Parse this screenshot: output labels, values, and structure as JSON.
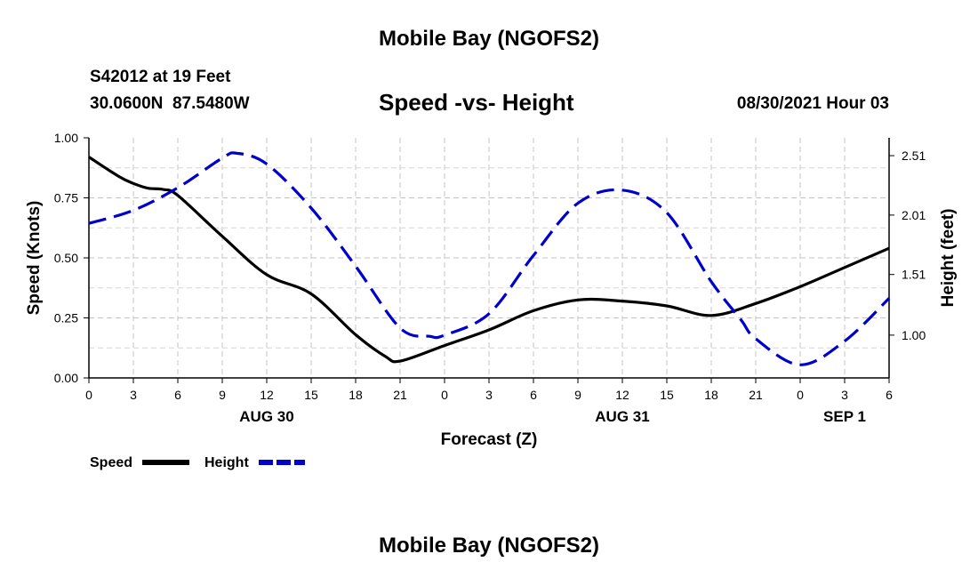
{
  "header": {
    "title": "Mobile Bay (NGOFS2)",
    "station": "S42012 at 19 Feet",
    "coords": "30.0600N  87.5480W",
    "subtitle": "Speed -vs- Height",
    "datetime": "08/30/2021 Hour 03"
  },
  "footer": {
    "title": "Mobile Bay (NGOFS2)"
  },
  "chart_data": {
    "type": "line",
    "title": "Speed -vs- Height",
    "xlabel": "Forecast (Z)",
    "ylabel": "Speed (Knots)",
    "y2label": "Height (feet)",
    "x_range_hours": [
      0,
      54
    ],
    "x_ticks": [
      {
        "hour": 0,
        "label": "0"
      },
      {
        "hour": 3,
        "label": "3"
      },
      {
        "hour": 6,
        "label": "6"
      },
      {
        "hour": 9,
        "label": "9"
      },
      {
        "hour": 12,
        "label": "12"
      },
      {
        "hour": 15,
        "label": "15"
      },
      {
        "hour": 18,
        "label": "18"
      },
      {
        "hour": 21,
        "label": "21"
      },
      {
        "hour": 24,
        "label": "0"
      },
      {
        "hour": 27,
        "label": "3"
      },
      {
        "hour": 30,
        "label": "6"
      },
      {
        "hour": 33,
        "label": "9"
      },
      {
        "hour": 36,
        "label": "12"
      },
      {
        "hour": 39,
        "label": "15"
      },
      {
        "hour": 42,
        "label": "18"
      },
      {
        "hour": 45,
        "label": "21"
      },
      {
        "hour": 48,
        "label": "0"
      },
      {
        "hour": 51,
        "label": "3"
      },
      {
        "hour": 54,
        "label": "6"
      }
    ],
    "day_labels": [
      {
        "hour": 12,
        "label": "AUG 30"
      },
      {
        "hour": 36,
        "label": "AUG 31"
      },
      {
        "hour": 51,
        "label": "SEP 1"
      }
    ],
    "ylim": [
      0,
      1.0
    ],
    "y_ticks": [
      "0.00",
      "0.25",
      "0.50",
      "0.75",
      "1.00"
    ],
    "y2lim": [
      0.64,
      2.66
    ],
    "y2_ticks": [
      {
        "value": 1.0,
        "label": "1.00"
      },
      {
        "value": 1.51,
        "label": "1.51"
      },
      {
        "value": 2.01,
        "label": "2.01"
      },
      {
        "value": 2.51,
        "label": "2.51"
      }
    ],
    "grid": true,
    "series": [
      {
        "name": "Speed",
        "axis": "left",
        "color": "#000000",
        "dash": "solid",
        "x": [
          0,
          2,
          3,
          4,
          5,
          6,
          9,
          12,
          15,
          18,
          20,
          21,
          24,
          27,
          30,
          33,
          36,
          39,
          42,
          45,
          48,
          51,
          54
        ],
        "values": [
          0.92,
          0.84,
          0.81,
          0.79,
          0.785,
          0.76,
          0.59,
          0.43,
          0.35,
          0.18,
          0.09,
          0.07,
          0.135,
          0.2,
          0.28,
          0.325,
          0.32,
          0.3,
          0.26,
          0.31,
          0.38,
          0.46,
          0.54
        ]
      },
      {
        "name": "Height",
        "axis": "right",
        "color": "#0000cc",
        "dash": "dashed",
        "x": [
          0,
          3,
          6,
          9,
          10,
          12,
          15,
          18,
          21,
          23,
          24,
          27,
          30,
          33,
          36,
          39,
          42,
          44,
          45,
          48,
          51,
          54
        ],
        "values": [
          1.94,
          2.05,
          2.24,
          2.49,
          2.53,
          2.44,
          2.07,
          1.58,
          1.06,
          0.99,
          1.0,
          1.18,
          1.67,
          2.11,
          2.22,
          2.03,
          1.45,
          1.13,
          0.97,
          0.75,
          0.95,
          1.31
        ]
      }
    ],
    "legend": [
      {
        "label": "Speed",
        "color": "#000000",
        "dash": "solid"
      },
      {
        "label": "Height",
        "color": "#0000cc",
        "dash": "dashed"
      }
    ]
  }
}
